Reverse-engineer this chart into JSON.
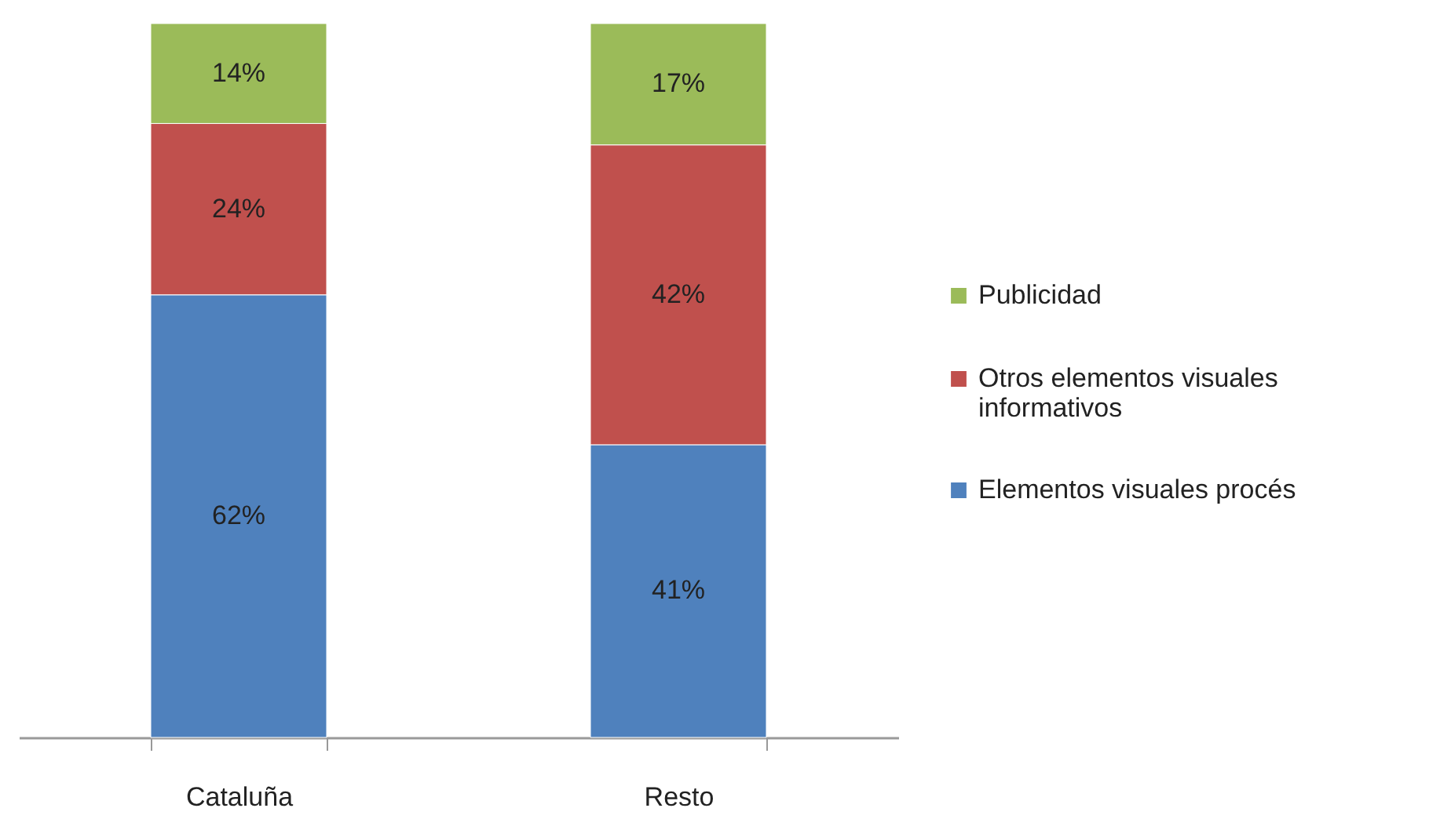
{
  "chart_data": {
    "type": "bar",
    "stacked": true,
    "categories": [
      "Cataluña",
      "Resto"
    ],
    "series": [
      {
        "name": "Elementos visuales procés",
        "color": "#4f81bd",
        "values": [
          62,
          41
        ],
        "value_labels": [
          "62%",
          "41%"
        ]
      },
      {
        "name": "Otros elementos visuales informativos",
        "color": "#c0504d",
        "values": [
          24,
          42
        ],
        "value_labels": [
          "24%",
          "42%"
        ]
      },
      {
        "name": "Publicidad",
        "color": "#9bbb59",
        "values": [
          14,
          17
        ],
        "value_labels": [
          "14%",
          "17%"
        ]
      }
    ],
    "ylim": [
      0,
      100
    ],
    "tick_labels": "x",
    "legend": "right"
  }
}
